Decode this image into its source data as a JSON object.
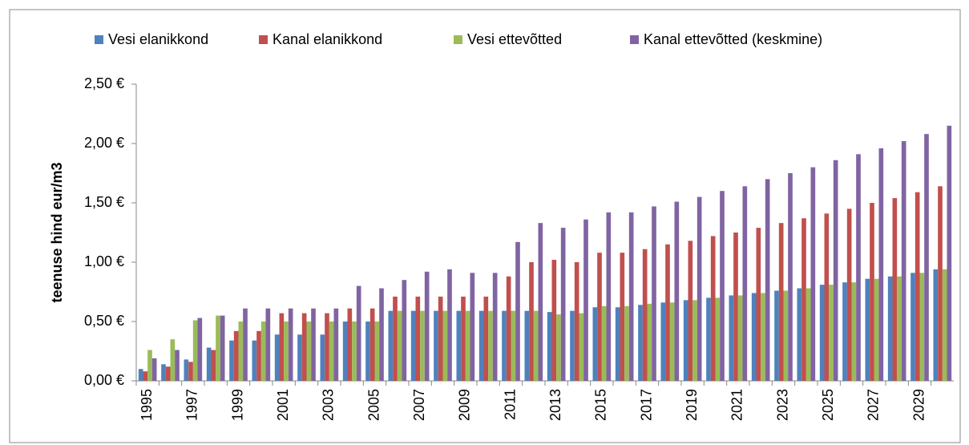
{
  "chart_data": {
    "type": "bar",
    "y_label": "teenuse hind eur/m3",
    "categories": [
      "1995",
      null,
      "1997",
      null,
      "1999",
      null,
      "2001",
      null,
      "2003",
      null,
      "2005",
      null,
      "2007",
      null,
      "2009",
      null,
      "2011",
      null,
      "2013",
      null,
      "2015",
      null,
      "2017",
      null,
      "2019",
      null,
      "2021",
      null,
      "2023",
      null,
      "2025",
      null,
      "2027",
      null,
      "2029",
      null
    ],
    "series": [
      {
        "name": "Vesi elanikkond",
        "color": "#4f81bd",
        "values": [
          0.1,
          0.14,
          0.18,
          0.28,
          0.34,
          0.34,
          0.39,
          0.39,
          0.39,
          0.5,
          0.5,
          0.59,
          0.59,
          0.59,
          0.59,
          0.59,
          0.59,
          0.59,
          0.58,
          0.59,
          0.62,
          0.62,
          0.64,
          0.66,
          0.68,
          0.7,
          0.72,
          0.74,
          0.76,
          0.78,
          0.81,
          0.83,
          0.86,
          0.88,
          0.91,
          0.94
        ]
      },
      {
        "name": "Kanal elanikkond",
        "color": "#c0504d",
        "values": [
          0.08,
          0.12,
          0.16,
          0.26,
          0.42,
          0.42,
          0.57,
          0.57,
          0.57,
          0.61,
          0.61,
          0.71,
          0.71,
          0.71,
          0.71,
          0.71,
          0.88,
          1.0,
          1.02,
          1.0,
          1.08,
          1.08,
          1.11,
          1.15,
          1.18,
          1.22,
          1.25,
          1.29,
          1.33,
          1.37,
          1.41,
          1.45,
          1.5,
          1.54,
          1.59,
          1.64
        ]
      },
      {
        "name": "Vesi ettevõtted",
        "color": "#9bbb59",
        "values": [
          0.26,
          0.35,
          0.51,
          0.55,
          0.5,
          0.5,
          0.5,
          0.5,
          0.5,
          0.5,
          0.5,
          0.59,
          0.59,
          0.59,
          0.59,
          0.59,
          0.59,
          0.59,
          0.56,
          0.57,
          0.63,
          0.63,
          0.65,
          0.66,
          0.68,
          0.7,
          0.72,
          0.74,
          0.76,
          0.78,
          0.81,
          0.83,
          0.86,
          0.88,
          0.91,
          0.94
        ]
      },
      {
        "name": "Kanal ettevõtted (keskmine)",
        "color": "#8064a2",
        "values": [
          0.19,
          0.26,
          0.53,
          0.55,
          0.61,
          0.61,
          0.61,
          0.61,
          0.61,
          0.8,
          0.78,
          0.85,
          0.92,
          0.94,
          0.91,
          0.91,
          1.17,
          1.33,
          1.29,
          1.36,
          1.42,
          1.42,
          1.47,
          1.51,
          1.55,
          1.6,
          1.64,
          1.7,
          1.75,
          1.8,
          1.86,
          1.91,
          1.96,
          2.02,
          2.08,
          2.15
        ]
      }
    ],
    "ylim": [
      0,
      2.5
    ],
    "yticks": [
      {
        "value": 0,
        "label": "0,00 €"
      },
      {
        "value": 0.5,
        "label": "0,50 €"
      },
      {
        "value": 1,
        "label": "1,00 €"
      },
      {
        "value": 1.5,
        "label": "1,50 €"
      },
      {
        "value": 2,
        "label": "2,00 €"
      },
      {
        "value": 2.5,
        "label": "2,50 €"
      }
    ],
    "grid": false,
    "legend": "top"
  }
}
